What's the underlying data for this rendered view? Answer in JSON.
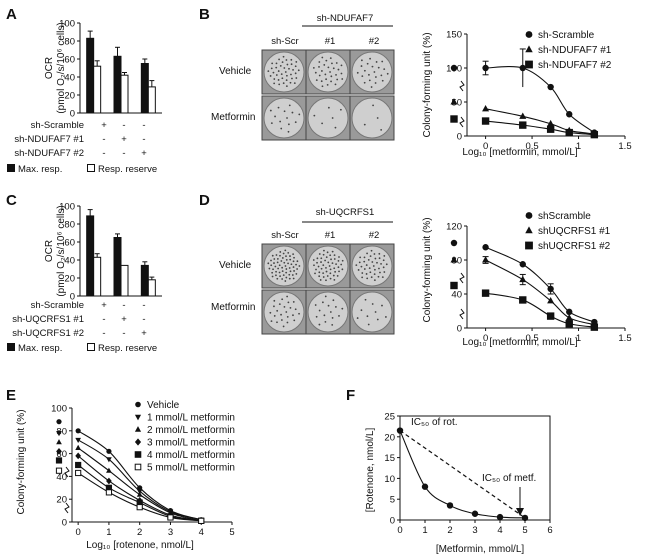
{
  "panels": {
    "A": {
      "letter": "A",
      "ylabel": "OCR",
      "ylabel2": "(pmol O₂/s/10⁶ cells)",
      "yticks": [
        "0",
        "20",
        "40",
        "60",
        "80",
        "100"
      ],
      "rows": [
        {
          "label": "sh-Scramble",
          "marks": [
            "+",
            "-",
            "-"
          ]
        },
        {
          "label": "sh-NDUFAF7 #1",
          "marks": [
            "-",
            "+",
            "-"
          ]
        },
        {
          "label": "sh-NDUFAF7 #2",
          "marks": [
            "-",
            "-",
            "+"
          ]
        }
      ],
      "legend_black": "Max. resp.",
      "legend_white": "Resp. reserve"
    },
    "B": {
      "letter": "B",
      "group_header": "sh-NDUFAF7",
      "col_labels": [
        "sh-Scr",
        "#1",
        "#2"
      ],
      "row_labels": [
        "Vehicle",
        "Metformin"
      ],
      "ylabel": "Colony-forming unit (%)",
      "xlabel": "Log₁₀ [metformin, mmol/L]",
      "xticks": [
        "0",
        "0.5",
        "1",
        "1.5"
      ],
      "yticks": [
        "0",
        "50",
        "100",
        "150"
      ],
      "legend": [
        "sh-Scramble",
        "sh-NDUFAF7 #1",
        "sh-NDUFAF7 #2"
      ]
    },
    "C": {
      "letter": "C",
      "ylabel": "OCR",
      "ylabel2": "(pmol O₂/s/10⁶ cells)",
      "yticks": [
        "0",
        "20",
        "40",
        "60",
        "80",
        "100"
      ],
      "rows": [
        {
          "label": "sh-Scramble",
          "marks": [
            "+",
            "-",
            "-"
          ]
        },
        {
          "label": "sh-UQCRFS1 #1",
          "marks": [
            "-",
            "+",
            "-"
          ]
        },
        {
          "label": "sh-UQCRFS1 #2",
          "marks": [
            "-",
            "-",
            "+"
          ]
        }
      ],
      "legend_black": "Max. resp.",
      "legend_white": "Resp. reserve"
    },
    "D": {
      "letter": "D",
      "group_header": "sh-UQCRFS1",
      "col_labels": [
        "sh-Scr",
        "#1",
        "#2"
      ],
      "row_labels": [
        "Vehicle",
        "Metformin"
      ],
      "ylabel": "Colony-forming unit (%)",
      "xlabel": "Log₁₀ [metformin, mmol/L]",
      "xticks": [
        "0",
        "0.5",
        "1",
        "1.5"
      ],
      "yticks": [
        "0",
        "40",
        "80",
        "120"
      ],
      "legend": [
        "shScramble",
        "shUQCRFS1 #1",
        "shUQCRFS1 #2"
      ]
    },
    "E": {
      "letter": "E",
      "ylabel": "Colony-forming unit (%)",
      "xlabel": "Log₁₀ [rotenone, nmol/L]",
      "xticks": [
        "0",
        "1",
        "2",
        "3",
        "4",
        "5"
      ],
      "yticks": [
        "0",
        "20",
        "40",
        "60",
        "80",
        "100"
      ],
      "legend": [
        "Vehicle",
        "1 mmol/L metformin",
        "2 mmol/L metformin",
        "3 mmol/L metformin",
        "4 mmol/L metformin",
        "5 mmol/L metformin"
      ]
    },
    "F": {
      "letter": "F",
      "ylabel": "[Rotenone, nmol/L]",
      "xlabel": "[Metformin, mmol/L]",
      "xticks": [
        "0",
        "1",
        "2",
        "3",
        "4",
        "5",
        "6"
      ],
      "yticks": [
        "0",
        "5",
        "10",
        "15",
        "20",
        "25"
      ],
      "annot_rot": "IC₅₀ of rot.",
      "annot_metf": "IC₅₀ of metf."
    }
  },
  "chart_data": [
    {
      "panel": "A",
      "type": "bar",
      "categories": [
        "sh-Scramble",
        "sh-NDUFAF7 #1",
        "sh-NDUFAF7 #2"
      ],
      "series": [
        {
          "name": "Max. resp.",
          "values": [
            83,
            63,
            55
          ],
          "errors": [
            8,
            10,
            5
          ],
          "color": "#111111"
        },
        {
          "name": "Resp. reserve",
          "values": [
            52,
            42,
            29
          ],
          "errors": [
            6,
            3,
            7
          ],
          "color": "#ffffff"
        }
      ],
      "ylim": [
        0,
        100
      ]
    },
    {
      "panel": "B",
      "type": "line",
      "x": [
        0,
        0.4,
        0.7,
        0.9,
        1.17
      ],
      "series": [
        {
          "name": "sh-Scramble",
          "marker": "circle",
          "values": [
            100,
            100,
            72,
            32,
            5
          ],
          "errors": [
            10,
            0,
            0,
            0,
            0
          ],
          "y_at_axis": 100
        },
        {
          "name": "sh-NDUFAF7 #1",
          "marker": "triangle",
          "values": [
            40,
            29,
            18,
            8,
            3
          ],
          "errors": [
            0,
            0,
            0,
            0,
            0
          ],
          "y_at_axis": 50
        },
        {
          "name": "sh-NDUFAF7 #2",
          "marker": "square",
          "values": [
            22,
            16,
            10,
            5,
            2
          ],
          "errors": [
            0,
            0,
            0,
            0,
            0
          ],
          "y_at_axis": 25
        }
      ],
      "extra_errorbars": [
        {
          "series": 0,
          "x": 0.4,
          "y": 100,
          "err": 28
        }
      ],
      "xlim": [
        -0.2,
        1.5
      ],
      "ylim": [
        0,
        150
      ]
    },
    {
      "panel": "C",
      "type": "bar",
      "categories": [
        "sh-Scramble",
        "sh-UQCRFS1 #1",
        "sh-UQCRFS1 #2"
      ],
      "series": [
        {
          "name": "Max. resp.",
          "values": [
            89,
            65,
            34
          ],
          "errors": [
            7,
            4,
            4
          ],
          "color": "#111111"
        },
        {
          "name": "Resp. reserve",
          "values": [
            43,
            34,
            18
          ],
          "errors": [
            4,
            0,
            3
          ],
          "color": "#ffffff"
        }
      ],
      "ylim": [
        0,
        100
      ]
    },
    {
      "panel": "D",
      "type": "line",
      "x": [
        0,
        0.4,
        0.7,
        0.9,
        1.17
      ],
      "series": [
        {
          "name": "shScramble",
          "marker": "circle",
          "values": [
            95,
            75,
            46,
            19,
            7
          ],
          "errors": [
            0,
            0,
            6,
            0,
            0
          ],
          "y_at_axis": 100
        },
        {
          "name": "shUQCRFS1 #1",
          "marker": "triangle",
          "values": [
            80,
            57,
            32,
            12,
            4
          ],
          "errors": [
            4,
            6,
            0,
            0,
            0
          ],
          "y_at_axis": 80
        },
        {
          "name": "shUQCRFS1 #2",
          "marker": "square",
          "values": [
            41,
            33,
            14,
            5,
            1
          ],
          "errors": [
            0,
            0,
            0,
            0,
            0
          ],
          "y_at_axis": 50
        }
      ],
      "xlim": [
        -0.2,
        1.5
      ],
      "ylim": [
        0,
        120
      ]
    },
    {
      "panel": "E",
      "type": "line",
      "x": [
        0,
        1,
        2,
        3,
        4
      ],
      "series": [
        {
          "name": "Vehicle",
          "marker": "circle",
          "values": [
            80,
            62,
            30,
            10,
            2
          ],
          "y_at_axis": 88
        },
        {
          "name": "1 mmol/L metformin",
          "marker": "triangle-down",
          "values": [
            72,
            55,
            27,
            9,
            2
          ],
          "y_at_axis": 78
        },
        {
          "name": "2 mmol/L metformin",
          "marker": "triangle",
          "values": [
            65,
            45,
            24,
            8,
            1
          ],
          "y_at_axis": 70
        },
        {
          "name": "3 mmol/L metformin",
          "marker": "diamond",
          "values": [
            58,
            36,
            19,
            6,
            1
          ],
          "y_at_axis": 62
        },
        {
          "name": "4 mmol/L metformin",
          "marker": "square",
          "values": [
            50,
            30,
            17,
            5,
            1
          ],
          "y_at_axis": 54
        },
        {
          "name": "5 mmol/L metformin",
          "marker": "square-open",
          "values": [
            43,
            26,
            13,
            4,
            1
          ],
          "y_at_axis": 45
        }
      ],
      "xlim": [
        -0.2,
        5
      ],
      "ylim": [
        0,
        100
      ]
    },
    {
      "panel": "F",
      "type": "line",
      "x": [
        0,
        1,
        2,
        3,
        4,
        5
      ],
      "series": [
        {
          "name": "",
          "marker": "circle",
          "values": [
            21.5,
            8,
            3.5,
            1.5,
            0.7,
            0.5
          ]
        }
      ],
      "reference_line": {
        "from": [
          0,
          21.5
        ],
        "to": [
          5,
          0.5
        ]
      },
      "xlim": [
        0,
        6
      ],
      "ylim": [
        0,
        25
      ]
    }
  ]
}
